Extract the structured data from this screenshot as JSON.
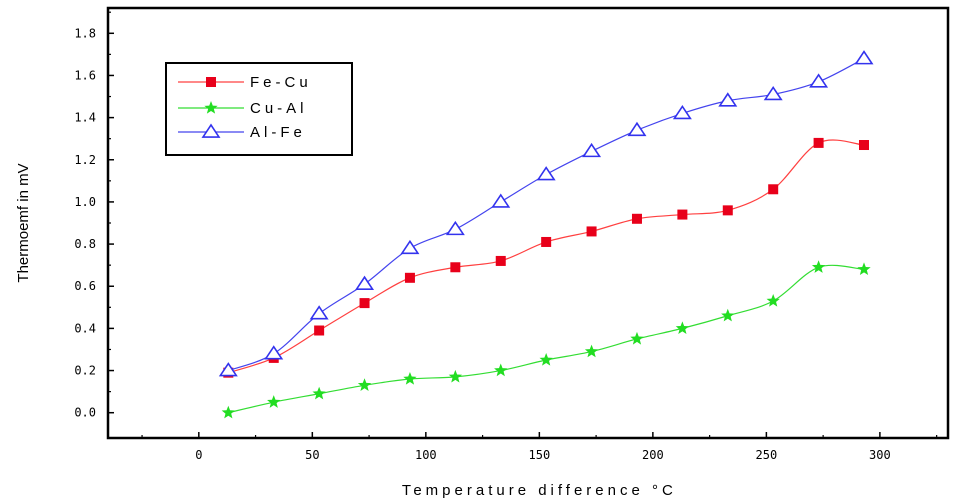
{
  "chart_data": {
    "type": "line",
    "title": "",
    "xlabel": "Temperature difference °C",
    "ylabel": "Thermoemf in mV",
    "xlim": [
      -40,
      330
    ],
    "ylim": [
      -0.12,
      1.92
    ],
    "xticks": [
      0,
      50,
      100,
      150,
      200,
      250,
      300
    ],
    "xtick_labels": [
      "0",
      "50",
      "100",
      "150",
      "200",
      "250",
      "300"
    ],
    "yticks": [
      0.0,
      0.2,
      0.4,
      0.6,
      0.8,
      1.0,
      1.2,
      1.4,
      1.6,
      1.8
    ],
    "ytick_labels": [
      "0.0",
      "0.2",
      "0.4",
      "0.6",
      "0.8",
      "1.0",
      "1.2",
      "1.4",
      "1.6",
      "1.8"
    ],
    "grid": false,
    "legend_position": "top-left",
    "x": [
      13,
      33,
      53,
      73,
      93,
      113,
      133,
      153,
      173,
      193,
      213,
      233,
      253,
      273,
      293
    ],
    "series": [
      {
        "name": "Fe-Cu",
        "marker": "square",
        "line_color": "#ff4040",
        "marker_color": "#e8001a",
        "values": [
          0.19,
          0.26,
          0.39,
          0.52,
          0.64,
          0.69,
          0.72,
          0.81,
          0.86,
          0.92,
          0.94,
          0.96,
          1.06,
          1.28,
          1.27
        ]
      },
      {
        "name": "Cu-Al",
        "marker": "star",
        "line_color": "#33dd33",
        "marker_color": "#22dd22",
        "values": [
          0.0,
          0.05,
          0.09,
          0.13,
          0.16,
          0.17,
          0.2,
          0.25,
          0.29,
          0.35,
          0.4,
          0.46,
          0.53,
          0.69,
          0.68
        ]
      },
      {
        "name": "Al-Fe",
        "marker": "triangle-open",
        "line_color": "#4444ee",
        "marker_color": "#3333ee",
        "values": [
          0.2,
          0.28,
          0.47,
          0.61,
          0.78,
          0.87,
          1.0,
          1.13,
          1.24,
          1.34,
          1.42,
          1.48,
          1.51,
          1.57,
          1.68
        ]
      }
    ],
    "legend": {
      "entries": [
        "Fe-Cu",
        "Cu-Al",
        "Al-Fe"
      ]
    }
  }
}
